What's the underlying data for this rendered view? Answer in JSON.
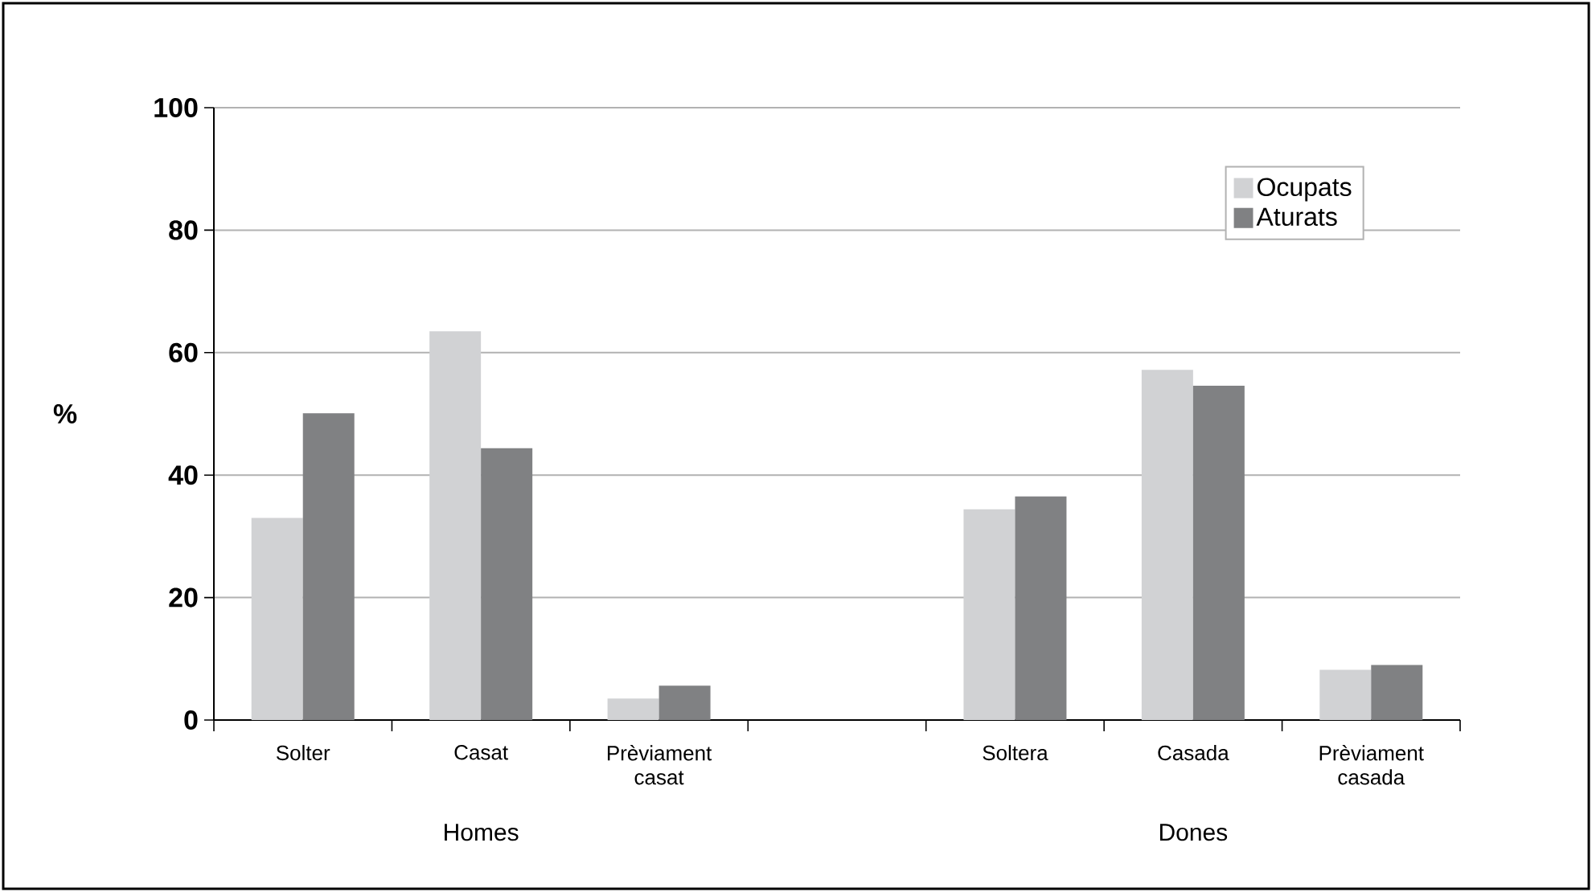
{
  "chart_data": {
    "type": "bar",
    "ylabel": "%",
    "categories": [
      "Solter",
      "Casat",
      "Prèviament casat",
      null,
      "Soltera",
      "Casada",
      "Prèviament casada"
    ],
    "series": [
      {
        "name": "Ocupats",
        "color": "#d1d2d4",
        "values": [
          33.0,
          63.5,
          3.5,
          null,
          34.4,
          57.2,
          8.2
        ]
      },
      {
        "name": "Aturats",
        "color": "#808183",
        "values": [
          50.1,
          44.4,
          5.6,
          null,
          36.5,
          54.6,
          9.0
        ]
      }
    ],
    "ylim": [
      0,
      100
    ],
    "yticks": [
      0,
      20,
      40,
      60,
      80,
      100
    ],
    "grid": "y",
    "legend": "top right",
    "annotations": [
      "Homes",
      "Dones"
    ]
  }
}
